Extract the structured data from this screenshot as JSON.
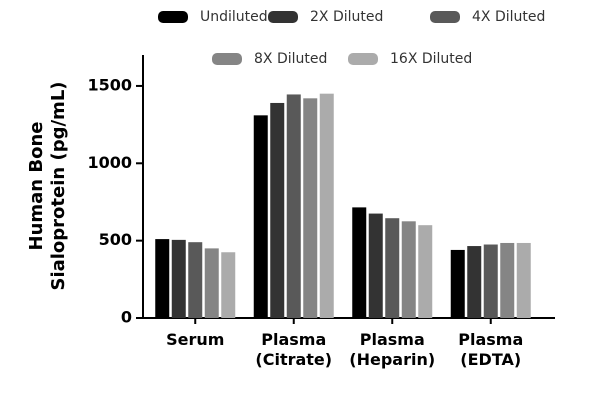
{
  "chart_data": {
    "type": "bar",
    "y_label": "Human Bone Sialoprotein (pg/mL)",
    "categories": [
      "Serum",
      "Plasma (Citrate)",
      "Plasma (Heparin)",
      "Plasma (EDTA)"
    ],
    "series": [
      {
        "name": "Undiluted",
        "color": "#000000",
        "values": [
          510,
          1310,
          715,
          440
        ]
      },
      {
        "name": "2X Diluted",
        "color": "#333333",
        "values": [
          505,
          1390,
          675,
          465
        ]
      },
      {
        "name": "4X Diluted",
        "color": "#595959",
        "values": [
          490,
          1445,
          645,
          475
        ]
      },
      {
        "name": "8X Diluted",
        "color": "#858585",
        "values": [
          450,
          1420,
          625,
          485
        ]
      },
      {
        "name": "16X Diluted",
        "color": "#ababab",
        "values": [
          425,
          1450,
          600,
          485
        ]
      }
    ],
    "ylim": [
      0,
      1700
    ],
    "yticks": [
      0,
      500,
      1000,
      1500
    ]
  }
}
